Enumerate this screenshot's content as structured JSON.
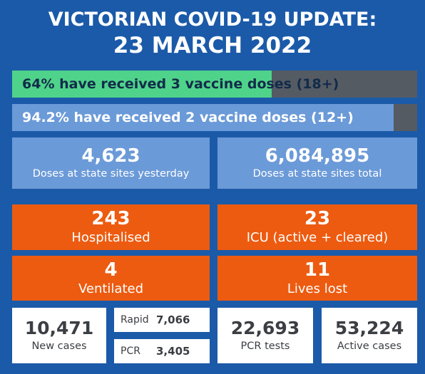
{
  "header": {
    "line1": "VICTORIAN COVID-19 UPDATE:",
    "line2": "23 MARCH 2022"
  },
  "vaccine_bars": [
    {
      "label": "64% have received 3 vaccine doses (18+)",
      "percent": 64,
      "fill_color": "#4fd38a",
      "text_color": "#122b4a"
    },
    {
      "label": "94.2% have received 2 vaccine doses (12+)",
      "percent": 94.2,
      "fill_color": "#6b9ad8",
      "text_color": "#ffffff"
    }
  ],
  "doses": {
    "yesterday": {
      "value": "4,623",
      "label": "Doses at state sites yesterday"
    },
    "total": {
      "value": "6,084,895",
      "label": "Doses at state sites total"
    }
  },
  "hospital": {
    "hospitalised": {
      "value": "243",
      "label": "Hospitalised"
    },
    "icu": {
      "value": "23",
      "label": "ICU (active + cleared)"
    },
    "ventilated": {
      "value": "4",
      "label": "Ventilated"
    },
    "lives_lost": {
      "value": "11",
      "label": "Lives lost"
    }
  },
  "cases": {
    "new_cases": {
      "value": "10,471",
      "label": "New cases"
    },
    "rapid": {
      "label": "Rapid",
      "value": "7,066"
    },
    "pcr": {
      "label": "PCR",
      "value": "3,405"
    },
    "pcr_tests": {
      "value": "22,693",
      "label": "PCR tests"
    },
    "active_cases": {
      "value": "53,224",
      "label": "Active cases"
    }
  },
  "colors": {
    "background": "#1b5aa8",
    "tile_blue": "#6b9ad8",
    "tile_orange": "#ed5b10",
    "bar_track": "#555b63",
    "progress_green": "#4fd38a"
  }
}
